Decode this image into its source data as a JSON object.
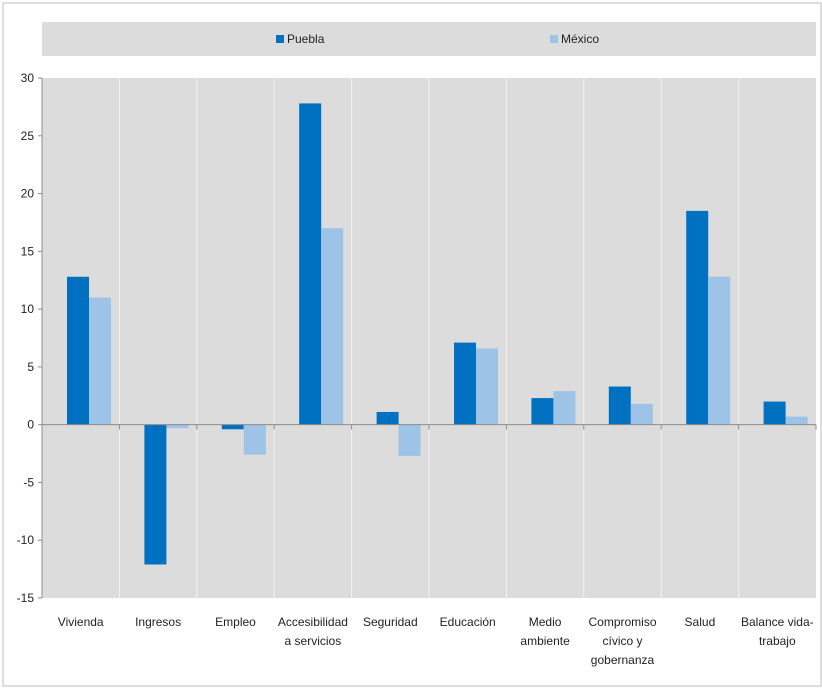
{
  "chart_data": {
    "type": "bar",
    "title": "",
    "xlabel": "",
    "ylabel": "",
    "categories": [
      [
        "Vivienda"
      ],
      [
        "Ingresos"
      ],
      [
        "Empleo"
      ],
      [
        "Accesibilidad",
        "a servicios"
      ],
      [
        "Seguridad"
      ],
      [
        "Educación"
      ],
      [
        "Medio",
        "ambiente"
      ],
      [
        "Compromiso",
        "cívico y",
        "gobernanza"
      ],
      [
        "Salud"
      ],
      [
        "Balance vida-",
        "trabajo"
      ]
    ],
    "series": [
      {
        "name": "Puebla",
        "color": "#0070C0",
        "values": [
          12.8,
          -12.1,
          -0.4,
          27.8,
          1.1,
          7.1,
          2.3,
          3.3,
          18.5,
          2.0
        ]
      },
      {
        "name": "México",
        "color": "#9DC3E6",
        "values": [
          11.0,
          -0.3,
          -2.6,
          17.0,
          -2.7,
          6.6,
          2.9,
          1.8,
          12.8,
          0.7
        ]
      }
    ],
    "ylim": [
      -15,
      30
    ],
    "yticks": [
      30,
      25,
      20,
      15,
      10,
      5,
      0,
      -5,
      -10,
      -15
    ],
    "grid": true,
    "legend_position": "top",
    "plot_background": "#DCDCDC"
  }
}
